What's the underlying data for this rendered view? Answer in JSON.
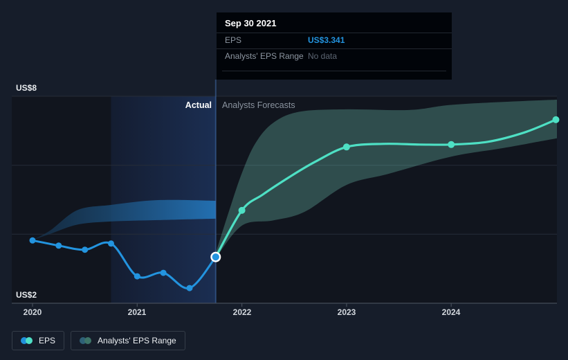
{
  "tooltip": {
    "title": "Sep 30 2021",
    "rows": [
      {
        "label": "EPS",
        "value": "US$3.341"
      },
      {
        "label": "Analysts' EPS Range",
        "value": "No data"
      }
    ],
    "eps_value_color": "#2394df"
  },
  "chart": {
    "actual_label": "Actual",
    "forecast_label": "Analysts Forecasts",
    "y_axis_top_label": "US$8",
    "y_axis_bottom_label": "US$2"
  },
  "legend": {
    "items": [
      {
        "label": "EPS",
        "dot_colors": [
          "#2191db",
          "#4fe0c6"
        ]
      },
      {
        "label": "Analysts' EPS Range",
        "dot_colors": [
          "#2e6177",
          "#3d7468"
        ]
      }
    ]
  },
  "chart_data": {
    "type": "line",
    "title": "EPS — past results and analysts' forecasts",
    "ylim": [
      2,
      8
    ],
    "y_gridline_values": [
      8,
      6,
      4
    ],
    "y_axis_unit": "US$",
    "x_ticks": [
      "2020",
      "2021",
      "2022",
      "2023",
      "2024"
    ],
    "divider_date": "Sep 30 2021",
    "hovered_point": {
      "date": "Sep 30 2021",
      "value": 3.341
    },
    "highlight_range_t": [
      2020.75,
      2021.75
    ],
    "series": [
      {
        "name": "EPS",
        "kind": "actual",
        "color": "#2394df",
        "points": [
          {
            "date": "Dec 31 2019",
            "t": 2020.0,
            "value": 3.82
          },
          {
            "date": "Mar 31 2020",
            "t": 2020.25,
            "value": 3.67
          },
          {
            "date": "Jun 30 2020",
            "t": 2020.5,
            "value": 3.55
          },
          {
            "date": "Sep 30 2020",
            "t": 2020.75,
            "value": 3.73
          },
          {
            "date": "Dec 31 2020",
            "t": 2021.0,
            "value": 2.78
          },
          {
            "date": "Mar 31 2021",
            "t": 2021.25,
            "value": 2.88
          },
          {
            "date": "Jun 30 2021",
            "t": 2021.5,
            "value": 2.44
          },
          {
            "date": "Sep 30 2021",
            "t": 2021.75,
            "value": 3.341,
            "hover": true
          }
        ]
      },
      {
        "name": "EPS (analysts forecast)",
        "kind": "forecast",
        "color": "#4ee0c4",
        "points": [
          {
            "date": "Sep 30 2021",
            "t": 2021.75,
            "value": 3.341
          },
          {
            "date": "Dec 31 2021",
            "t": 2022.0,
            "value": 4.69,
            "dot": true
          },
          {
            "t": 2022.2,
            "value": 5.15,
            "interp": true
          },
          {
            "t": 2022.45,
            "value": 5.65,
            "interp": true
          },
          {
            "t": 2022.7,
            "value": 6.1,
            "interp": true
          },
          {
            "date": "Dec 31 2022",
            "t": 2023.0,
            "value": 6.53,
            "dot": true
          },
          {
            "t": 2023.35,
            "value": 6.62,
            "interp": true
          },
          {
            "t": 2023.7,
            "value": 6.6,
            "interp": true
          },
          {
            "date": "Dec 31 2023",
            "t": 2024.0,
            "value": 6.6,
            "dot": true
          },
          {
            "t": 2024.35,
            "value": 6.68,
            "interp": true
          },
          {
            "t": 2024.7,
            "value": 6.95,
            "interp": true
          },
          {
            "date": "Dec 31 2024",
            "t": 2025.0,
            "value": 7.32,
            "dot": true
          }
        ]
      }
    ],
    "bands": [
      {
        "name": "Analysts' EPS Range (actual)",
        "fill_from": "#16344f",
        "fill_to": "#2373b6",
        "top": [
          [
            2020.0,
            3.83
          ],
          [
            2020.17,
            4.11
          ],
          [
            2020.43,
            4.7
          ],
          [
            2020.75,
            4.85
          ],
          [
            2021.2,
            4.99
          ],
          [
            2021.75,
            4.97
          ]
        ],
        "bottom": [
          [
            2020.0,
            3.83
          ],
          [
            2020.17,
            4.01
          ],
          [
            2020.43,
            4.28
          ],
          [
            2020.75,
            4.37
          ],
          [
            2021.2,
            4.41
          ],
          [
            2021.75,
            4.45
          ]
        ]
      },
      {
        "name": "Analysts' EPS Range (forecast)",
        "fill": "rgba(120,210,190,0.30)",
        "top": [
          [
            2021.75,
            3.45
          ],
          [
            2021.87,
            4.6
          ],
          [
            2022.0,
            5.77
          ],
          [
            2022.13,
            6.64
          ],
          [
            2022.3,
            7.23
          ],
          [
            2022.55,
            7.55
          ],
          [
            2023.0,
            7.62
          ],
          [
            2023.6,
            7.6
          ],
          [
            2024.0,
            7.75
          ],
          [
            2024.6,
            7.85
          ],
          [
            2025.01,
            7.9
          ]
        ],
        "bottom": [
          [
            2021.75,
            3.3
          ],
          [
            2022.0,
            4.25
          ],
          [
            2022.3,
            4.4
          ],
          [
            2022.6,
            4.65
          ],
          [
            2023.0,
            5.43
          ],
          [
            2023.4,
            5.75
          ],
          [
            2024.0,
            6.25
          ],
          [
            2024.5,
            6.5
          ],
          [
            2025.01,
            6.78
          ]
        ]
      }
    ],
    "style": {
      "page_bg": "#161d2a",
      "plot_bg": "#11151e",
      "highlight_from": "#141d31",
      "highlight_to": "#1b2e52",
      "grid_color": "#262d38",
      "axis_color": "#454d59",
      "divider_color": "rgba(74,124,196,0.45)",
      "hover_ring_color": "#ffffff"
    }
  }
}
